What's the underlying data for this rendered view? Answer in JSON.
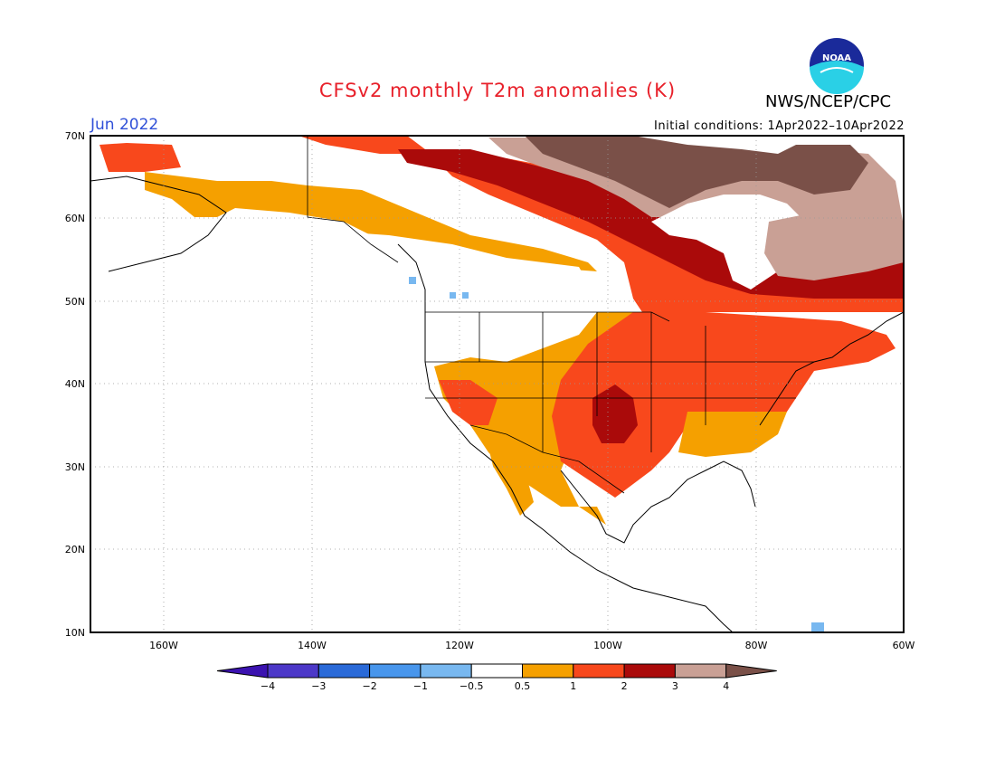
{
  "title": "CFSv2 monthly T2m anomalies (K)",
  "month": "Jun 2022",
  "init_conditions": "Initial conditions: 1Apr2022–10Apr2022",
  "agency": "NWS/NCEP/CPC",
  "logo_text": "NOAA",
  "lat_labels": [
    "70N",
    "60N",
    "50N",
    "40N",
    "30N",
    "20N",
    "10N"
  ],
  "lon_labels": [
    "160W",
    "140W",
    "120W",
    "100W",
    "80W",
    "60W"
  ],
  "colorbar": {
    "labels": [
      "-4",
      "-3",
      "-2",
      "-1",
      "-0.5",
      "0.5",
      "1",
      "2",
      "3",
      "4"
    ],
    "colors": [
      "#3b12b0",
      "#4c38c8",
      "#2a6ad8",
      "#4896ec",
      "#78b8f0",
      "#ffffff",
      "#f5a000",
      "#f8481c",
      "#aa0a0a",
      "#c9a095",
      "#7a5048"
    ]
  },
  "legend_colors": {
    "pos_0_5_1": "#f5a000",
    "pos_1_2": "#f8481c",
    "pos_2_3": "#aa0a0a",
    "pos_3_4": "#c9a095",
    "pos_gt4": "#7a5048",
    "neg_0_5_1": "#78b8f0",
    "neg_1_2": "#4896ec"
  }
}
